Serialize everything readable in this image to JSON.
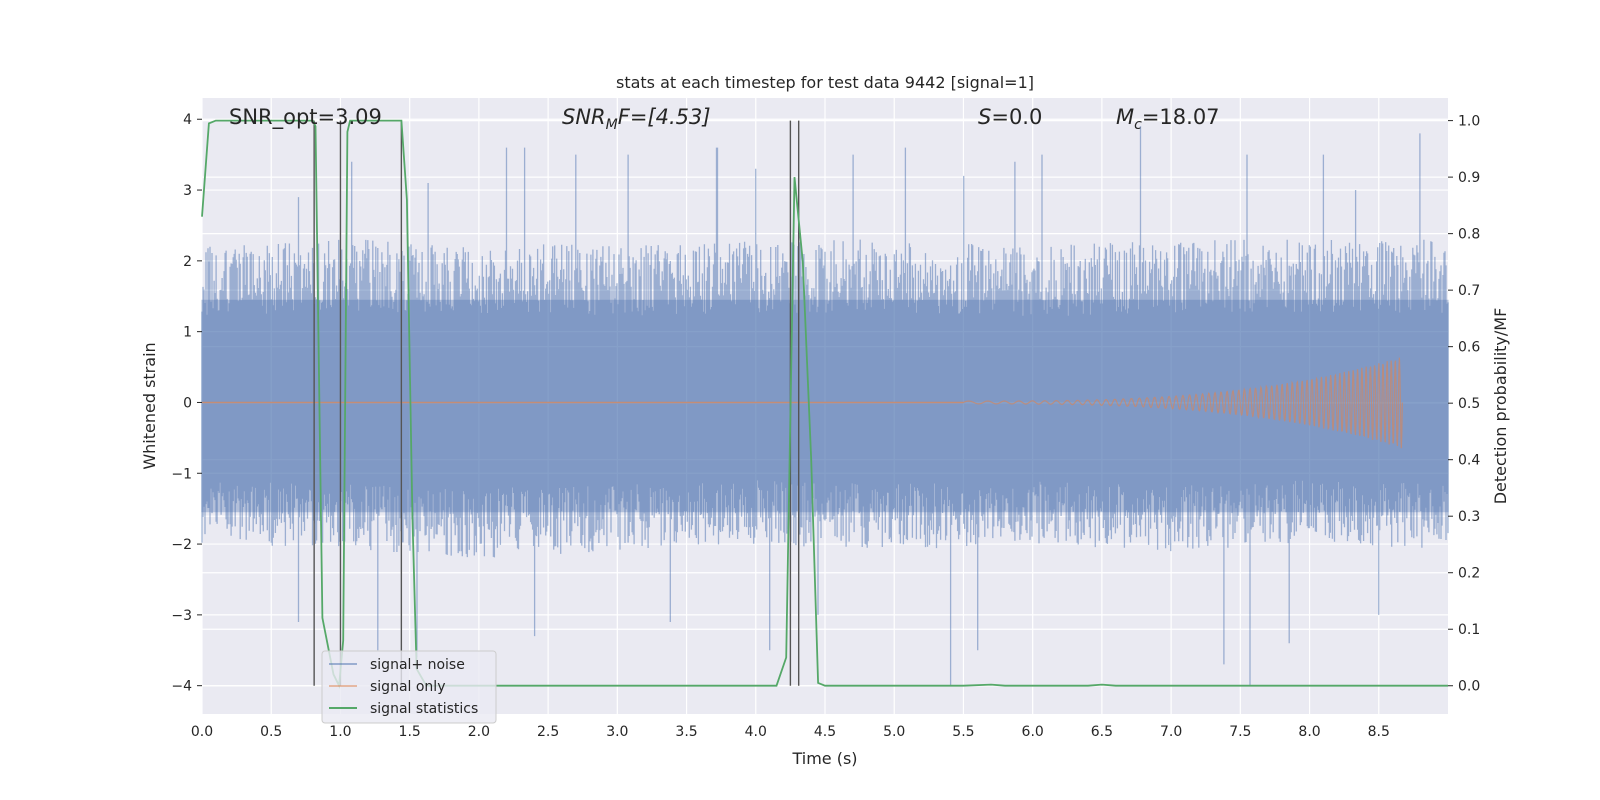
{
  "chart_data": {
    "type": "line",
    "title": "stats at each timestep for test data 9442 [signal=1]",
    "xlabel": "Time (s)",
    "ylabel": "Whitened strain",
    "ylabel_right": "Detection probability/MF",
    "xlim": [
      0,
      9.0
    ],
    "ylim": [
      -4.4,
      4.3
    ],
    "ylim_right": [
      -0.05,
      1.04
    ],
    "grid": true,
    "legend_position": "lower-left",
    "x_ticks": [
      "0.0",
      "0.5",
      "1.0",
      "1.5",
      "2.0",
      "2.5",
      "3.0",
      "3.5",
      "4.0",
      "4.5",
      "5.0",
      "5.5",
      "6.0",
      "6.5",
      "7.0",
      "7.5",
      "8.0",
      "8.5"
    ],
    "y_ticks": [
      "−4",
      "−3",
      "−2",
      "−1",
      "0",
      "1",
      "2",
      "3",
      "4"
    ],
    "y_ticks_right": [
      "0.0",
      "0.1",
      "0.2",
      "0.3",
      "0.4",
      "0.5",
      "0.6",
      "0.7",
      "0.8",
      "0.9",
      "1.0"
    ],
    "annotations": {
      "snr_opt": "SNR_opt=3.09",
      "snr_mf_main": "SNR",
      "snr_mf_sub": "M",
      "snr_mf_rest": "F=[4.53]",
      "s_main": "S",
      "s_rest": "=0.0",
      "mc_main": "M",
      "mc_sub": "c",
      "mc_rest": "=18.07"
    },
    "series": [
      {
        "name": "signal+ noise",
        "color": "#4c72b0",
        "axis": "left",
        "noise_envelope": {
          "x": [
            0.0,
            1.0,
            2.0,
            3.0,
            4.0,
            5.0,
            6.0,
            7.0,
            8.0,
            9.0
          ],
          "typical_max": [
            2.2,
            2.3,
            2.3,
            2.2,
            2.3,
            2.3,
            2.2,
            2.3,
            2.3,
            2.3
          ],
          "typical_min": [
            -2.0,
            -2.1,
            -2.2,
            -2.1,
            -2.0,
            -2.1,
            -2.0,
            -2.1,
            -2.0,
            -2.1
          ],
          "peaks": [
            {
              "x": 0.7,
              "y": 2.9
            },
            {
              "x": 1.08,
              "y": 3.4
            },
            {
              "x": 1.63,
              "y": 3.1
            },
            {
              "x": 2.2,
              "y": 3.6
            },
            {
              "x": 2.33,
              "y": 3.6
            },
            {
              "x": 2.7,
              "y": 3.5
            },
            {
              "x": 3.08,
              "y": 3.5
            },
            {
              "x": 3.72,
              "y": 3.6
            },
            {
              "x": 4.0,
              "y": 3.3
            },
            {
              "x": 4.7,
              "y": 3.5
            },
            {
              "x": 5.08,
              "y": 3.6
            },
            {
              "x": 5.5,
              "y": 3.2
            },
            {
              "x": 5.87,
              "y": 3.4
            },
            {
              "x": 6.07,
              "y": 3.5
            },
            {
              "x": 6.78,
              "y": 3.9
            },
            {
              "x": 7.55,
              "y": 3.5
            },
            {
              "x": 8.1,
              "y": 3.5
            },
            {
              "x": 8.33,
              "y": 3.0
            },
            {
              "x": 8.8,
              "y": 3.8
            }
          ],
          "troughs": [
            {
              "x": 0.7,
              "y": -3.1
            },
            {
              "x": 1.27,
              "y": -3.5
            },
            {
              "x": 1.55,
              "y": -3.6
            },
            {
              "x": 2.4,
              "y": -3.3
            },
            {
              "x": 3.38,
              "y": -3.1
            },
            {
              "x": 4.1,
              "y": -3.5
            },
            {
              "x": 4.45,
              "y": -3.0
            },
            {
              "x": 5.41,
              "y": -4.0
            },
            {
              "x": 5.6,
              "y": -3.5
            },
            {
              "x": 7.38,
              "y": -3.7
            },
            {
              "x": 7.57,
              "y": -4.0
            },
            {
              "x": 7.85,
              "y": -3.4
            },
            {
              "x": 8.5,
              "y": -3.0
            }
          ]
        }
      },
      {
        "name": "signal only",
        "color": "#dd8452",
        "axis": "left",
        "chirp": {
          "x_start": 5.5,
          "x_end": 8.67,
          "amplitude_start": 0.02,
          "amplitude_end": 0.65
        }
      },
      {
        "name": "signal statistics",
        "color": "#55a868",
        "axis": "right",
        "x": [
          0.0,
          0.05,
          0.1,
          0.15,
          0.2,
          0.3,
          0.5,
          0.7,
          0.8,
          0.82,
          0.87,
          0.95,
          0.99,
          1.02,
          1.05,
          1.07,
          1.1,
          1.2,
          1.3,
          1.35,
          1.4,
          1.44,
          1.48,
          1.52,
          1.55,
          1.62,
          1.7,
          2.0,
          3.0,
          4.0,
          4.15,
          4.22,
          4.28,
          4.34,
          4.4,
          4.45,
          4.5,
          4.6,
          5.0,
          5.5,
          5.7,
          5.8,
          6.0,
          6.4,
          6.5,
          6.6,
          7.0,
          7.5,
          8.0,
          8.5,
          9.0
        ],
        "y": [
          0.83,
          0.995,
          1.0,
          1.0,
          1.0,
          1.0,
          1.0,
          1.0,
          1.0,
          0.99,
          0.12,
          0.02,
          0.0,
          0.08,
          0.98,
          1.0,
          1.0,
          1.0,
          1.0,
          1.0,
          1.0,
          1.0,
          0.86,
          0.3,
          0.03,
          0.0,
          0.0,
          0.0,
          0.0,
          0.0,
          0.0,
          0.05,
          0.9,
          0.75,
          0.4,
          0.005,
          0.0,
          0.0,
          0.0,
          0.0,
          0.002,
          0.0,
          0.0,
          0.0,
          0.002,
          0.0,
          0.0,
          0.0,
          0.0,
          0.0,
          0.0
        ]
      }
    ],
    "vertical_lines": [
      0.81,
      1.0,
      1.44,
      4.25,
      4.31
    ]
  }
}
